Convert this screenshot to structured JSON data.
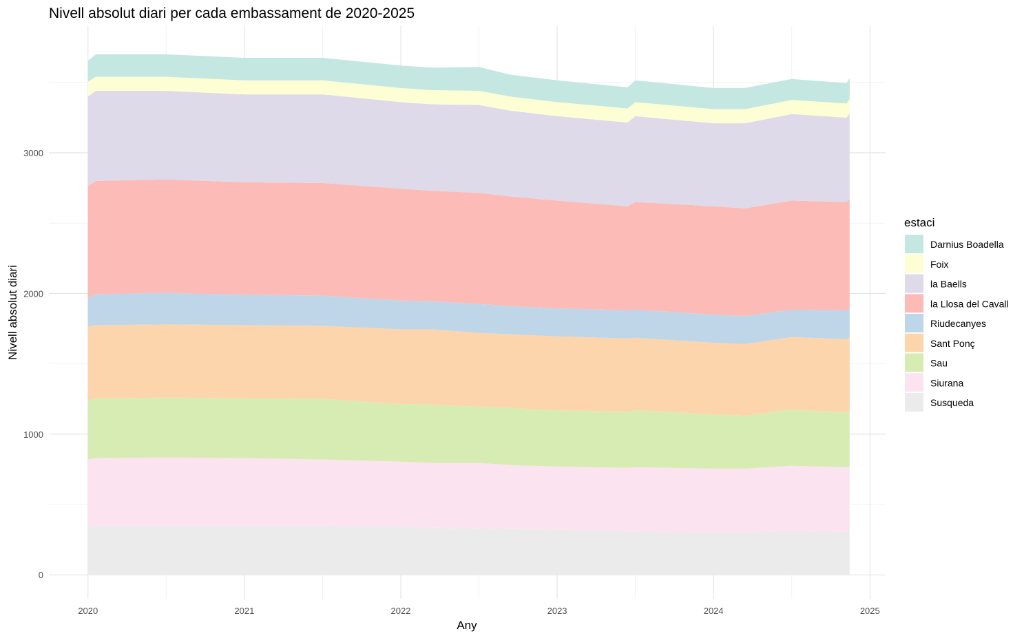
{
  "chart_data": {
    "type": "area",
    "stacked": true,
    "title": "Nivell absolut diari per cada embassament de 2020-2025",
    "xlabel": "Any",
    "ylabel": "Nivell absolut diari",
    "xlim": [
      2019.75,
      2025.1
    ],
    "ylim": [
      -170,
      3900
    ],
    "x_ticks": [
      2020,
      2021,
      2022,
      2023,
      2024,
      2025
    ],
    "x_tick_labels": [
      "2020",
      "2021",
      "2022",
      "2023",
      "2024",
      "2025"
    ],
    "y_ticks": [
      0,
      1000,
      2000,
      3000
    ],
    "y_tick_labels": [
      "0",
      "1000",
      "2000",
      "3000"
    ],
    "grid": true,
    "legend_title": "estaci",
    "legend_position": "right",
    "legend_order": [
      "Darnius Boadella",
      "Foix",
      "la Baells",
      "la Llosa del Cavall",
      "Riudecanyes",
      "Sant Ponç",
      "Sau",
      "Siurana",
      "Susqueda"
    ],
    "x": [
      2020.0,
      2020.05,
      2020.5,
      2021.0,
      2021.5,
      2022.0,
      2022.2,
      2022.5,
      2022.7,
      2023.0,
      2023.45,
      2023.5,
      2024.0,
      2024.2,
      2024.5,
      2024.85,
      2024.87
    ],
    "series": [
      {
        "name": "Susqueda",
        "color": "#EBEBEB",
        "values": [
          345,
          350,
          350,
          350,
          350,
          340,
          335,
          330,
          325,
          320,
          310,
          305,
          300,
          300,
          310,
          305,
          305
        ]
      },
      {
        "name": "Siurana",
        "color": "#FCE3F0",
        "values": [
          475,
          480,
          485,
          480,
          470,
          465,
          460,
          465,
          455,
          450,
          450,
          460,
          455,
          455,
          465,
          460,
          460
        ]
      },
      {
        "name": "Sau",
        "color": "#D7ECB3",
        "values": [
          415,
          425,
          425,
          425,
          430,
          410,
          415,
          400,
          405,
          400,
          400,
          405,
          385,
          375,
          400,
          390,
          395
        ]
      },
      {
        "name": "Sant Ponç",
        "color": "#FDD5AC",
        "values": [
          530,
          520,
          520,
          520,
          520,
          530,
          535,
          525,
          525,
          525,
          520,
          515,
          510,
          510,
          515,
          520,
          525
        ]
      },
      {
        "name": "Riudecanyes",
        "color": "#BED6E8",
        "values": [
          200,
          220,
          225,
          215,
          215,
          205,
          200,
          205,
          200,
          200,
          200,
          200,
          200,
          200,
          195,
          205,
          205
        ]
      },
      {
        "name": "la Llosa del Cavall",
        "color": "#FDBBB7",
        "values": [
          800,
          805,
          805,
          800,
          800,
          795,
          785,
          790,
          780,
          765,
          740,
          765,
          770,
          765,
          775,
          770,
          780
        ]
      },
      {
        "name": "la Baells",
        "color": "#DEDAEA",
        "values": [
          635,
          640,
          630,
          625,
          630,
          615,
          615,
          625,
          610,
          600,
          595,
          610,
          590,
          605,
          615,
          600,
          610
        ]
      },
      {
        "name": "Foix",
        "color": "#FEFED5",
        "values": [
          105,
          100,
          100,
          100,
          100,
          100,
          100,
          100,
          100,
          100,
          100,
          100,
          100,
          100,
          100,
          100,
          100
        ]
      },
      {
        "name": "Darnius Boadella",
        "color": "#C4E8E1",
        "values": [
          150,
          160,
          160,
          160,
          160,
          160,
          160,
          170,
          155,
          155,
          150,
          155,
          150,
          150,
          150,
          145,
          150
        ]
      }
    ]
  }
}
